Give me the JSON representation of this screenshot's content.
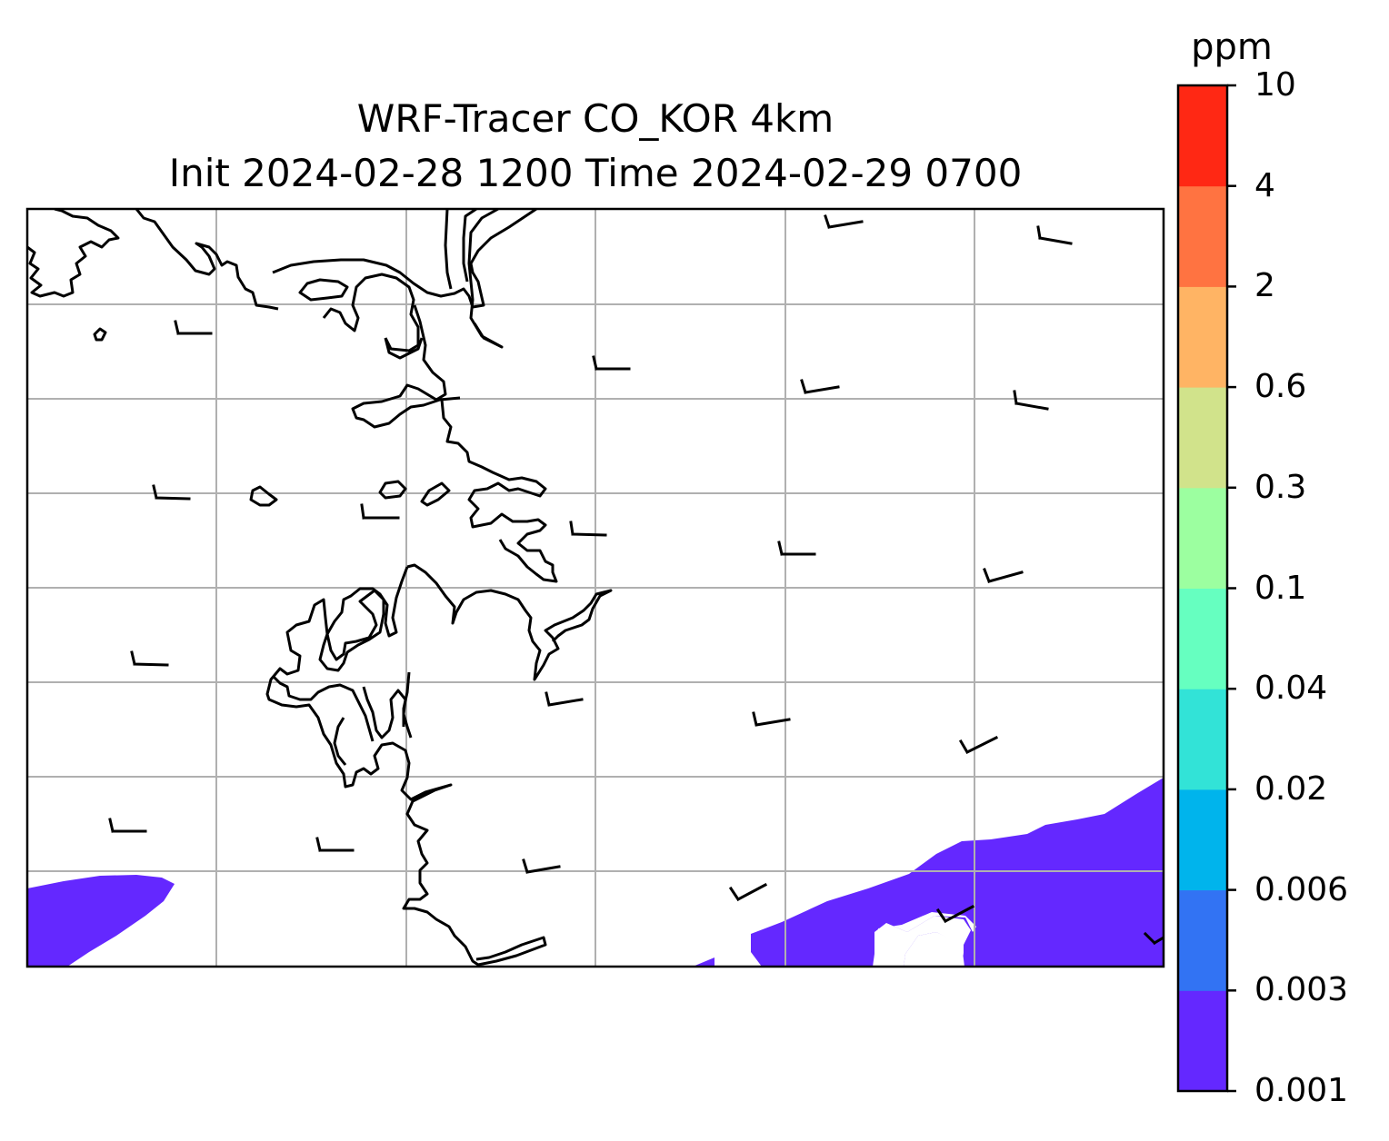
{
  "title": {
    "line1": "WRF-Tracer CO_KOR 4km",
    "line2": "Init 2024-02-28 1200 Time 2024-02-29 0700"
  },
  "colorbar": {
    "unit": "ppm",
    "levels": [
      "0.001",
      "0.003",
      "0.006",
      "0.02",
      "0.04",
      "0.1",
      "0.3",
      "0.6",
      "2",
      "4",
      "10"
    ],
    "colors": [
      "#6428ff",
      "#3273f3",
      "#00b4ec",
      "#32e3d7",
      "#66ffc0",
      "#9cffa0",
      "#d1e38b",
      "#ffb464",
      "#ff7341",
      "#ff2814"
    ]
  },
  "map": {
    "gridlines": true,
    "grid_color": "#b0b0b0",
    "coastline_color": "#000000",
    "shaded_level": "0.001",
    "wind_barbs": true
  }
}
